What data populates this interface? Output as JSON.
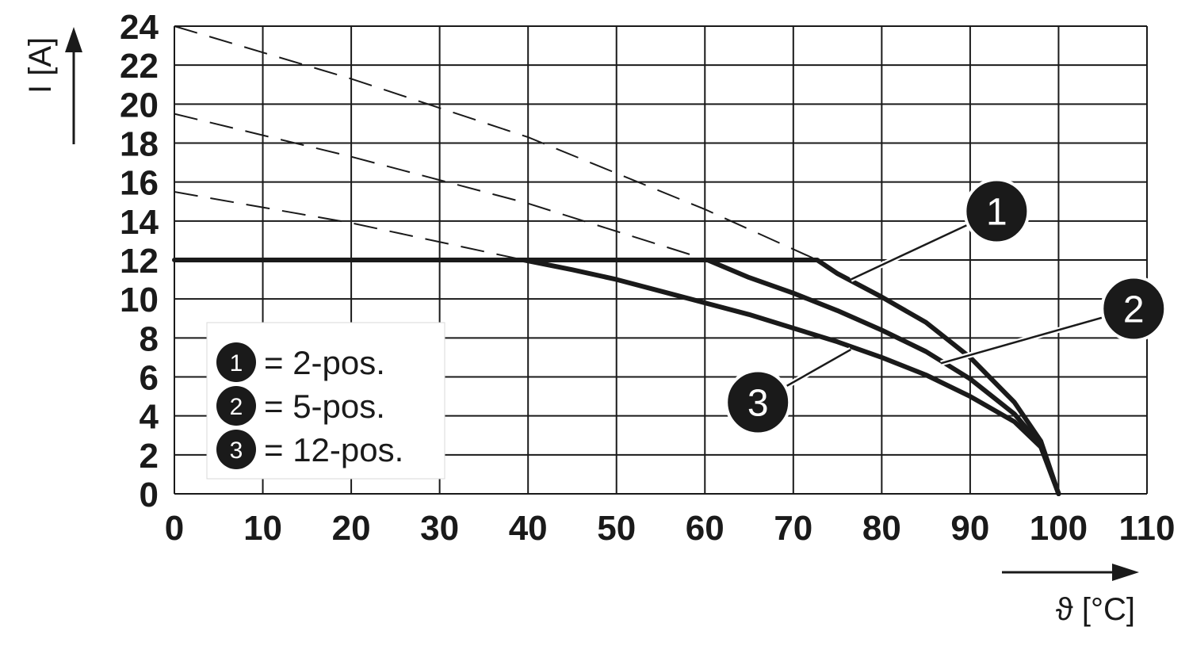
{
  "chart_data": {
    "type": "line",
    "xlabel": "ϑ [°C]",
    "ylabel": "I [A]",
    "xlim": [
      0,
      110
    ],
    "ylim": [
      0,
      24
    ],
    "x_ticks": [
      0,
      10,
      20,
      30,
      40,
      50,
      60,
      70,
      80,
      90,
      100,
      110
    ],
    "y_ticks": [
      0,
      2,
      4,
      6,
      8,
      10,
      12,
      14,
      16,
      18,
      20,
      22,
      24
    ],
    "grid": true,
    "legend_position": "lower-left",
    "line_color": "#1a1a1a",
    "series": [
      {
        "name": "2-pos.",
        "badge": "1",
        "solid": {
          "x": [
            0,
            72.7,
            75,
            80,
            85,
            90,
            95,
            98,
            100
          ],
          "y": [
            12,
            12,
            11.3,
            10.1,
            8.8,
            7.0,
            4.7,
            2.7,
            0
          ]
        },
        "dashed": {
          "x": [
            0,
            20,
            40,
            60,
            72.7
          ],
          "y": [
            24,
            21.3,
            18.3,
            14.6,
            12
          ]
        },
        "callout_badge_at": [
          93,
          14.5
        ],
        "callout_line_to": [
          76.5,
          11.0
        ]
      },
      {
        "name": "5-pos.",
        "badge": "2",
        "solid": {
          "x": [
            60.3,
            65,
            70,
            75,
            80,
            85,
            90,
            95,
            98,
            100
          ],
          "y": [
            12,
            11.1,
            10.3,
            9.4,
            8.4,
            7.3,
            5.9,
            4.1,
            2.5,
            0
          ]
        },
        "dashed": {
          "x": [
            0,
            20,
            40,
            60.3
          ],
          "y": [
            19.5,
            17.3,
            14.9,
            12
          ]
        },
        "callout_badge_at": [
          108.5,
          9.5
        ],
        "callout_line_to": [
          86.7,
          6.7
        ]
      },
      {
        "name": "12-pos.",
        "badge": "3",
        "solid": {
          "x": [
            39.5,
            45,
            50,
            55,
            60,
            65,
            70,
            75,
            80,
            85,
            90,
            95,
            98,
            100
          ],
          "y": [
            12,
            11.5,
            11.0,
            10.4,
            9.8,
            9.2,
            8.5,
            7.8,
            7.0,
            6.1,
            5.0,
            3.7,
            2.4,
            0
          ]
        },
        "dashed": {
          "x": [
            0,
            20,
            39.5
          ],
          "y": [
            15.5,
            13.9,
            12
          ]
        },
        "callout_badge_at": [
          66,
          4.7
        ],
        "callout_line_to": [
          76.5,
          7.4
        ]
      }
    ],
    "legend_entries": [
      {
        "badge": "1",
        "separator": "=",
        "label": "2-pos."
      },
      {
        "badge": "2",
        "separator": "=",
        "label": "5-pos."
      },
      {
        "badge": "3",
        "separator": "=",
        "label": "12-pos."
      }
    ]
  }
}
